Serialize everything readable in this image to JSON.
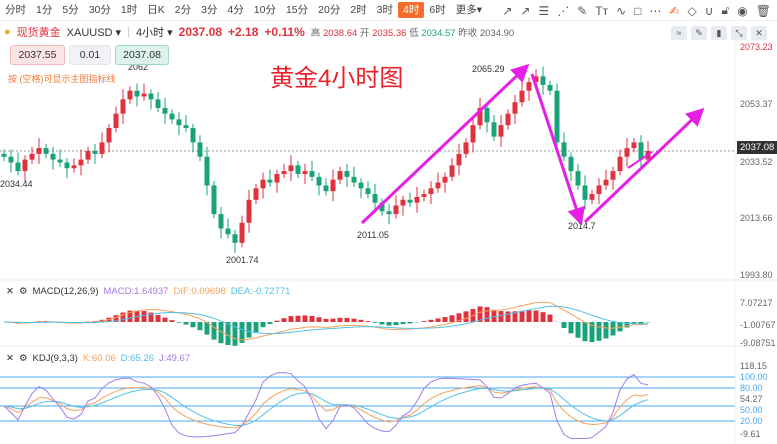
{
  "toolbar": {
    "periods": [
      "分时",
      "1分",
      "5分",
      "30分",
      "1时",
      "日K",
      "2分",
      "3分",
      "4分",
      "10分",
      "15分",
      "20分",
      "2时",
      "3时",
      "4时",
      "6时",
      "更多▾"
    ],
    "active": "4时",
    "tools": [
      "trend-line-icon",
      "ray-icon",
      "fib-icon",
      "fan-icon",
      "brush-icon",
      "text-icon",
      "wave-icon",
      "rect-icon",
      "more-icon",
      "edit-icon",
      "eraser-icon",
      "magnet-icon",
      "lock-icon",
      "eye-icon",
      "trash-icon"
    ]
  },
  "symbol": {
    "name": "现货黄金",
    "code": "XAUUSD ▾",
    "period": "4小时 ▾",
    "price": "2037.08",
    "change": "+2.18",
    "pct": "+0.11%",
    "high_label": "高",
    "high": "2038.64",
    "open_label": "开",
    "open": "2035.36",
    "low_label": "低",
    "low": "2034.57",
    "prev_label": "昨收",
    "prev": "2034.90"
  },
  "order": {
    "sell": "2037.55",
    "qty": "0.01",
    "buy": "2037.08",
    "hint": "按 (空格)可显示主图指标线"
  },
  "annotation": "黄金4小时图",
  "colors": {
    "up": "#e0323c",
    "down": "#1aa37a",
    "arrow": "#e61ee6",
    "macd": "#a07ee6",
    "dif": "#f5a35c",
    "dea": "#52c0e6"
  },
  "chart_data": {
    "type": "candlestick",
    "ylim": [
      1993.8,
      2073.23
    ],
    "y_ticks": [
      "2073.23",
      "2053.37",
      "2033.52",
      "2013.66",
      "1993.80"
    ],
    "labels": {
      "high1": "2062",
      "low1": "2001.74",
      "low2": "2011.05",
      "high2": "2065.29",
      "low3": "2014.7",
      "left": "2034.44"
    },
    "last_price": "2037.08",
    "closes": [
      2035,
      2033,
      2030,
      2034,
      2036,
      2038,
      2036,
      2034,
      2033,
      2031,
      2032,
      2034,
      2037,
      2036,
      2040,
      2045,
      2050,
      2055,
      2058,
      2056,
      2057,
      2055,
      2052,
      2050,
      2048,
      2046,
      2045,
      2040,
      2035,
      2025,
      2015,
      2010,
      2008,
      2005,
      2012,
      2020,
      2024,
      2027,
      2026,
      2029,
      2030,
      2032,
      2029,
      2030,
      2028,
      2025,
      2023,
      2027,
      2030,
      2028,
      2026,
      2024,
      2022,
      2019,
      2016,
      2015,
      2018,
      2020,
      2019,
      2021,
      2022,
      2024,
      2026,
      2028,
      2032,
      2036,
      2040,
      2046,
      2052,
      2047,
      2042,
      2046,
      2050,
      2054,
      2058,
      2061,
      2063,
      2060,
      2058,
      2040,
      2035,
      2030,
      2025,
      2020,
      2022,
      2025,
      2027,
      2030,
      2035,
      2038,
      2040,
      2034,
      2037
    ]
  },
  "macd": {
    "title": "MACD(12,26,9)",
    "macd": "MACD:1.64937",
    "dif": "DIF:0.09698",
    "dea": "DEA:-0.72771",
    "ticks": [
      "7.07217",
      "-1.00767",
      "-9.08751"
    ]
  },
  "kdj": {
    "title": "KDJ(9,3,3)",
    "k": "K:60.06",
    "d": "D:65.26",
    "j": "J:49.67",
    "ticks": [
      "118.15",
      "100.00",
      "80.00",
      "54.27",
      "50.00",
      "20.00",
      "-9.61"
    ]
  }
}
